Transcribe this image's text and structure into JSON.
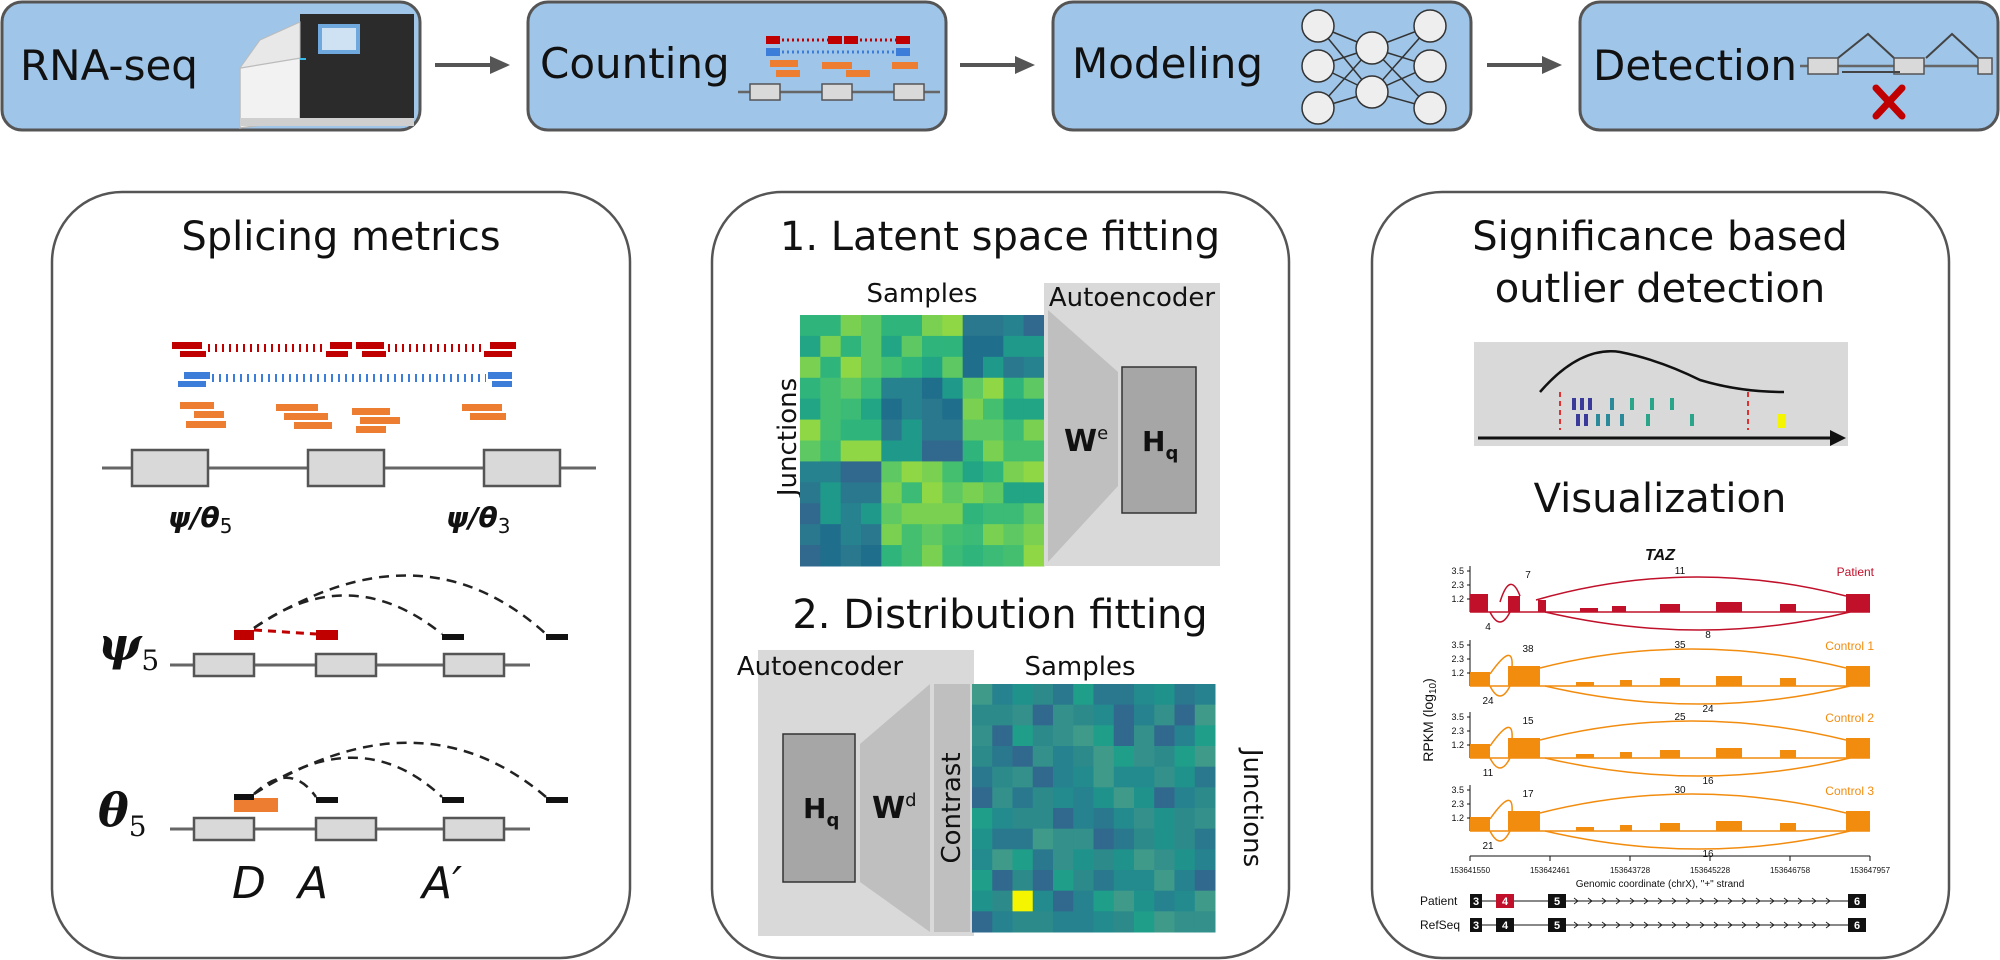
{
  "pipeline": {
    "steps": [
      {
        "label": "RNA-seq"
      },
      {
        "label": "Counting"
      },
      {
        "label": "Modeling"
      },
      {
        "label": "Detection"
      }
    ]
  },
  "splicing": {
    "title": "Splicing metrics",
    "psi_theta5": "ψ/θ",
    "psi_theta5_sub": "5",
    "psi_theta3": "ψ/θ",
    "psi_theta3_sub": "3",
    "psi5_symbol": "ψ",
    "psi5_sub": "5",
    "theta5_symbol": "θ",
    "theta5_sub": "5",
    "site_d": "D",
    "site_a": "A",
    "site_a_prime": "A′"
  },
  "latent": {
    "title": "1. Latent space fitting",
    "samples": "Samples",
    "junctions": "Junctions",
    "autoencoder": "Autoencoder",
    "we_main": "W",
    "we_sup": "e",
    "hq_main": "H",
    "hq_sub": "q"
  },
  "distribution": {
    "title": "2. Distribution fitting",
    "autoencoder": "Autoencoder",
    "samples": "Samples",
    "junctions": "Junctions",
    "contrast": "Contrast",
    "hq_main": "H",
    "hq_sub": "q",
    "wd_main": "W",
    "wd_sup": "d"
  },
  "significance": {
    "title_line1": "Significance based",
    "title_line2": "outlier detection",
    "visualization": "Visualization"
  },
  "sashimi": {
    "gene": "TAZ",
    "ylabel": "RPKM",
    "ylabel_unit": "(log",
    "ylabel_sub": "10",
    "ylabel_close": ")",
    "yticks": [
      "3.5",
      "2.3",
      "1.2"
    ],
    "tracks": [
      {
        "name": "Patient",
        "color": "#c0102a",
        "top_a": "7",
        "top_b": "11",
        "bottom_a": "4",
        "bottom_b": "8"
      },
      {
        "name": "Control 1",
        "color": "#f28c0f",
        "top_a": "38",
        "top_b": "35",
        "bottom_a": "24",
        "bottom_b": "24"
      },
      {
        "name": "Control 2",
        "color": "#f28c0f",
        "top_a": "15",
        "top_b": "25",
        "bottom_a": "11",
        "bottom_b": "16"
      },
      {
        "name": "Control 3",
        "color": "#f28c0f",
        "top_a": "17",
        "top_b": "30",
        "bottom_a": "21",
        "bottom_b": "16"
      }
    ],
    "xticks": [
      "153641550",
      "153642461",
      "153643728",
      "153645228",
      "153646758",
      "153647957"
    ],
    "xlabel": "Genomic coordinate (chrX), \"+\" strand",
    "models": [
      {
        "name": "Patient",
        "exons": [
          "3",
          "4",
          "5",
          "6"
        ]
      },
      {
        "name": "RefSeq",
        "exons": [
          "3",
          "4",
          "5",
          "6"
        ]
      }
    ]
  },
  "colors": {
    "step_fill": "#9fc5e8",
    "red_reads": "#c00000",
    "blue_reads": "#3c7dd9",
    "orange_reads": "#ed7d31",
    "exon_fill": "#d9d9d9",
    "outlier_yellow": "#f5f500"
  }
}
